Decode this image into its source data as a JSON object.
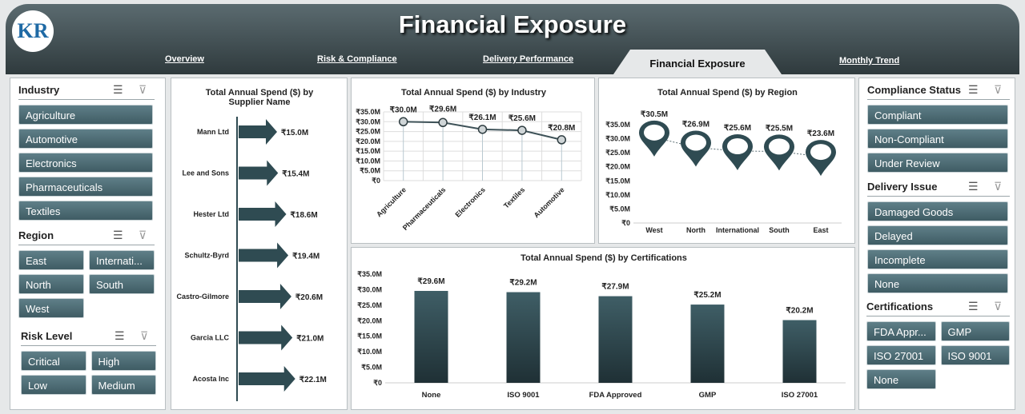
{
  "header": {
    "title": "Financial Exposure",
    "logo_text": "KR"
  },
  "tabs": [
    {
      "label": "Overview"
    },
    {
      "label": "Risk & Compliance"
    },
    {
      "label": "Delivery Performance"
    },
    {
      "label": "Financial Exposure"
    },
    {
      "label": "Monthly Trend"
    }
  ],
  "slicers": {
    "industry": {
      "title": "Industry",
      "items": [
        "Agriculture",
        "Automotive",
        "Electronics",
        "Pharmaceuticals",
        "Textiles"
      ]
    },
    "region": {
      "title": "Region",
      "items": [
        "East",
        "Internati...",
        "North",
        "South",
        "West"
      ]
    },
    "risk": {
      "title": "Risk Level",
      "items": [
        "Critical",
        "High",
        "Low",
        "Medium"
      ]
    },
    "compliance": {
      "title": "Compliance Status",
      "items": [
        "Compliant",
        "Non-Compliant",
        "Under Review"
      ]
    },
    "delivery": {
      "title": "Delivery Issue",
      "items": [
        "Damaged Goods",
        "Delayed",
        "Incomplete",
        "None"
      ]
    },
    "cert": {
      "title": "Certifications",
      "items": [
        "FDA Appr...",
        "GMP",
        "ISO 27001",
        "ISO 9001",
        "None"
      ]
    }
  },
  "colors": {
    "bar": "#2f4b52",
    "header": "#3a4649"
  },
  "chart_data": [
    {
      "type": "bar",
      "title": "Total Annual Spend ($) by Supplier Name",
      "categories": [
        "Mann Ltd",
        "Lee and Sons",
        "Hester Ltd",
        "Schultz-Byrd",
        "Castro-Gilmore",
        "Garcia LLC",
        "Acosta Inc"
      ],
      "values": [
        15.0,
        15.4,
        18.6,
        19.4,
        20.6,
        21.0,
        22.1
      ],
      "labels": [
        "₹15.0M",
        "₹15.4M",
        "₹18.6M",
        "₹19.4M",
        "₹20.6M",
        "₹21.0M",
        "₹22.1M"
      ]
    },
    {
      "type": "line",
      "title": "Total Annual Spend ($) by Industry",
      "categories": [
        "Agriculture",
        "Pharmaceuticals",
        "Electronics",
        "Textiles",
        "Automotive"
      ],
      "values": [
        30.0,
        29.6,
        26.1,
        25.6,
        20.8
      ],
      "labels": [
        "₹30.0M",
        "₹29.6M",
        "₹26.1M",
        "₹25.6M",
        "₹20.8M"
      ],
      "yticks": [
        "₹0",
        "₹5.0M",
        "₹10.0M",
        "₹15.0M",
        "₹20.0M",
        "₹25.0M",
        "₹30.0M",
        "₹35.0M"
      ],
      "ylim": [
        0,
        35
      ]
    },
    {
      "type": "scatter",
      "title": "Total Annual Spend ($) by Region",
      "categories": [
        "West",
        "North",
        "International",
        "South",
        "East"
      ],
      "values": [
        30.5,
        26.9,
        25.6,
        25.5,
        23.6
      ],
      "labels": [
        "₹30.5M",
        "₹26.9M",
        "₹25.6M",
        "₹25.5M",
        "₹23.6M"
      ],
      "yticks": [
        "₹0",
        "₹5.0M",
        "₹10.0M",
        "₹15.0M",
        "₹20.0M",
        "₹25.0M",
        "₹30.0M",
        "₹35.0M"
      ],
      "ylim": [
        0,
        35
      ]
    },
    {
      "type": "bar",
      "title": "Total Annual Spend ($) by Certifications",
      "categories": [
        "None",
        "ISO 9001",
        "FDA Approved",
        "GMP",
        "ISO 27001"
      ],
      "values": [
        29.6,
        29.2,
        27.9,
        25.2,
        20.2
      ],
      "labels": [
        "₹29.6M",
        "₹29.2M",
        "₹27.9M",
        "₹25.2M",
        "₹20.2M"
      ],
      "yticks": [
        "₹0",
        "₹5.0M",
        "₹10.0M",
        "₹15.0M",
        "₹20.0M",
        "₹25.0M",
        "₹30.0M",
        "₹35.0M"
      ],
      "ylim": [
        0,
        35
      ]
    }
  ]
}
